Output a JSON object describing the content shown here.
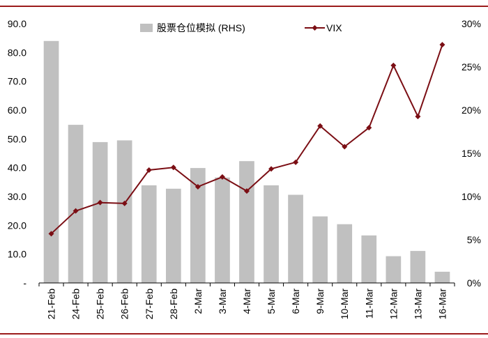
{
  "colors": {
    "rule": "#9b1b1b",
    "bar": "#c0c0c0",
    "line": "#7b0e14",
    "axis": "#000000"
  },
  "chart_data": {
    "type": "bar+line",
    "categories": [
      "21-Feb",
      "24-Feb",
      "25-Feb",
      "26-Feb",
      "27-Feb",
      "28-Feb",
      "2-Mar",
      "3-Mar",
      "4-Mar",
      "5-Mar",
      "6-Mar",
      "9-Mar",
      "10-Mar",
      "11-Mar",
      "12-Mar",
      "13-Mar",
      "16-Mar"
    ],
    "left_axis": {
      "ylim": [
        0,
        90
      ],
      "ticks": [
        "-",
        "10.0",
        "20.0",
        "30.0",
        "40.0",
        "50.0",
        "60.0",
        "70.0",
        "80.0",
        "90.0"
      ]
    },
    "right_axis": {
      "ylim": [
        0,
        30
      ],
      "ticks": [
        "0%",
        "5%",
        "10%",
        "15%",
        "20%",
        "25%",
        "30%"
      ]
    },
    "series": [
      {
        "name": "股票仓位模拟 (RHS)",
        "type": "bar",
        "axis": "right",
        "values": [
          28.0,
          18.3,
          16.3,
          16.5,
          11.3,
          10.9,
          13.3,
          12.2,
          14.1,
          11.3,
          10.2,
          7.7,
          6.8,
          5.5,
          3.1,
          3.7,
          1.3
        ]
      },
      {
        "name": "VIX",
        "type": "line",
        "axis": "left",
        "values": [
          17.1,
          25.0,
          27.9,
          27.6,
          39.2,
          40.1,
          33.4,
          36.8,
          31.9,
          39.6,
          41.9,
          54.5,
          47.3,
          53.9,
          75.5,
          57.8,
          82.7
        ]
      }
    ],
    "legend": {
      "placement": "top"
    }
  }
}
